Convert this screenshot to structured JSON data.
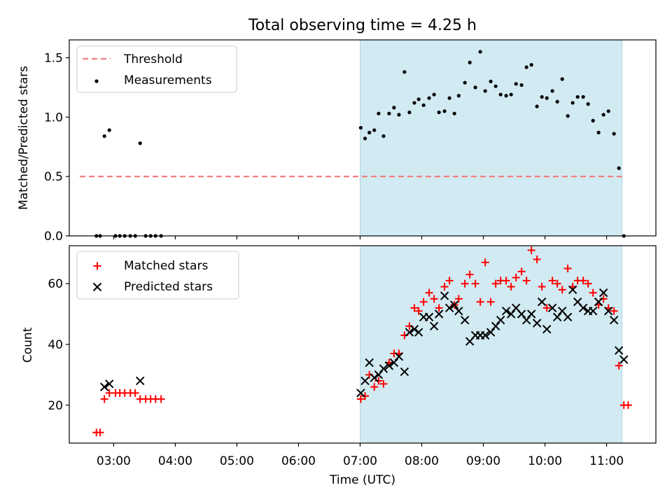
{
  "chart_data": {
    "title": "Total observing time = 4.25 h",
    "xlabel": "Time (UTC)",
    "x_ticks": [
      "03:00",
      "04:00",
      "05:00",
      "06:00",
      "07:00",
      "08:00",
      "09:00",
      "10:00",
      "11:00"
    ],
    "x_tick_hours": [
      3,
      4,
      5,
      6,
      7,
      8,
      9,
      10,
      11
    ],
    "xlim": [
      2.28,
      11.8
    ],
    "colors": {
      "threshold": "#f08080",
      "shade": "#add8e6",
      "matched": "#ff0000",
      "predicted": "#000000",
      "measurements": "#000000"
    },
    "panels": [
      {
        "type": "scatter",
        "ylabel": "Matched/Predicted stars",
        "ylim": [
          0,
          1.65
        ],
        "y_ticks": [
          0.0,
          0.5,
          1.0,
          1.5
        ],
        "y_tick_labels": [
          "0.0",
          "0.5",
          "1.0",
          "1.5"
        ],
        "legend_position": "top-left",
        "shaded_interval": [
          7.0,
          11.25
        ],
        "threshold": {
          "name": "Threshold",
          "y": 0.5,
          "x_range": [
            2.45,
            11.25
          ]
        },
        "series": [
          {
            "name": "Measurements",
            "points": [
              [
                2.72,
                0
              ],
              [
                2.78,
                0
              ],
              [
                2.85,
                0.84
              ],
              [
                2.93,
                0.89
              ],
              [
                3.03,
                0
              ],
              [
                3.1,
                0
              ],
              [
                3.18,
                0
              ],
              [
                3.27,
                0
              ],
              [
                3.35,
                0
              ],
              [
                3.43,
                0.78
              ],
              [
                3.52,
                0
              ],
              [
                3.6,
                0
              ],
              [
                3.68,
                0
              ],
              [
                3.77,
                0
              ],
              [
                7.01,
                0.91
              ],
              [
                7.08,
                0.82
              ],
              [
                7.15,
                0.87
              ],
              [
                7.23,
                0.89
              ],
              [
                7.3,
                1.03
              ],
              [
                7.38,
                0.84
              ],
              [
                7.47,
                1.03
              ],
              [
                7.55,
                1.08
              ],
              [
                7.63,
                1.02
              ],
              [
                7.72,
                1.38
              ],
              [
                7.8,
                1.04
              ],
              [
                7.88,
                1.12
              ],
              [
                7.95,
                1.15
              ],
              [
                8.03,
                1.1
              ],
              [
                8.12,
                1.16
              ],
              [
                8.2,
                1.19
              ],
              [
                8.28,
                1.04
              ],
              [
                8.37,
                1.05
              ],
              [
                8.45,
                1.16
              ],
              [
                8.53,
                1.03
              ],
              [
                8.6,
                1.18
              ],
              [
                8.7,
                1.29
              ],
              [
                8.78,
                1.46
              ],
              [
                8.87,
                1.25
              ],
              [
                8.95,
                1.55
              ],
              [
                9.03,
                1.22
              ],
              [
                9.12,
                1.3
              ],
              [
                9.2,
                1.26
              ],
              [
                9.28,
                1.19
              ],
              [
                9.37,
                1.18
              ],
              [
                9.45,
                1.19
              ],
              [
                9.53,
                1.28
              ],
              [
                9.62,
                1.27
              ],
              [
                9.7,
                1.42
              ],
              [
                9.78,
                1.44
              ],
              [
                9.87,
                1.09
              ],
              [
                9.95,
                1.17
              ],
              [
                10.03,
                1.16
              ],
              [
                10.12,
                1.22
              ],
              [
                10.2,
                1.13
              ],
              [
                10.28,
                1.32
              ],
              [
                10.37,
                1.01
              ],
              [
                10.45,
                1.12
              ],
              [
                10.53,
                1.17
              ],
              [
                10.62,
                1.17
              ],
              [
                10.7,
                1.11
              ],
              [
                10.78,
                0.97
              ],
              [
                10.87,
                0.87
              ],
              [
                10.95,
                1.02
              ],
              [
                11.03,
                1.05
              ],
              [
                11.12,
                0.86
              ],
              [
                11.2,
                0.57
              ],
              [
                11.28,
                0
              ]
            ]
          }
        ]
      },
      {
        "type": "scatter",
        "ylabel": "Count",
        "ylim": [
          7.5,
          72.5
        ],
        "y_ticks": [
          20,
          40,
          60
        ],
        "y_tick_labels": [
          "20",
          "40",
          "60"
        ],
        "legend_position": "top-left",
        "shaded_interval": [
          7.0,
          11.25
        ],
        "series": [
          {
            "name": "Matched stars",
            "marker": "plus",
            "points": [
              [
                2.72,
                11
              ],
              [
                2.78,
                11
              ],
              [
                2.85,
                22
              ],
              [
                2.93,
                24
              ],
              [
                3.03,
                24
              ],
              [
                3.1,
                24
              ],
              [
                3.18,
                24
              ],
              [
                3.27,
                24
              ],
              [
                3.35,
                24
              ],
              [
                3.43,
                22
              ],
              [
                3.52,
                22
              ],
              [
                3.6,
                22
              ],
              [
                3.68,
                22
              ],
              [
                3.77,
                22
              ],
              [
                7.01,
                22
              ],
              [
                7.08,
                23
              ],
              [
                7.15,
                30
              ],
              [
                7.23,
                26
              ],
              [
                7.3,
                28
              ],
              [
                7.38,
                27
              ],
              [
                7.47,
                34
              ],
              [
                7.55,
                37
              ],
              [
                7.63,
                37
              ],
              [
                7.72,
                43
              ],
              [
                7.8,
                46
              ],
              [
                7.88,
                52
              ],
              [
                7.95,
                51
              ],
              [
                8.03,
                54
              ],
              [
                8.12,
                57
              ],
              [
                8.2,
                55
              ],
              [
                8.28,
                52
              ],
              [
                8.37,
                59
              ],
              [
                8.45,
                61
              ],
              [
                8.53,
                53
              ],
              [
                8.6,
                55
              ],
              [
                8.7,
                60
              ],
              [
                8.78,
                63
              ],
              [
                8.87,
                60
              ],
              [
                8.95,
                54
              ],
              [
                9.03,
                67
              ],
              [
                9.12,
                54
              ],
              [
                9.2,
                60
              ],
              [
                9.28,
                61
              ],
              [
                9.37,
                61
              ],
              [
                9.45,
                59
              ],
              [
                9.53,
                62
              ],
              [
                9.62,
                64
              ],
              [
                9.7,
                61
              ],
              [
                9.78,
                71
              ],
              [
                9.87,
                68
              ],
              [
                9.95,
                59
              ],
              [
                10.03,
                52
              ],
              [
                10.12,
                61
              ],
              [
                10.2,
                60
              ],
              [
                10.28,
                58
              ],
              [
                10.37,
                65
              ],
              [
                10.45,
                59
              ],
              [
                10.53,
                61
              ],
              [
                10.62,
                61
              ],
              [
                10.7,
                60
              ],
              [
                10.78,
                57
              ],
              [
                10.87,
                53
              ],
              [
                10.95,
                55
              ],
              [
                11.03,
                52
              ],
              [
                11.12,
                51
              ],
              [
                11.2,
                33
              ],
              [
                11.28,
                20
              ],
              [
                11.35,
                20
              ]
            ]
          },
          {
            "name": "Predicted stars",
            "marker": "x",
            "points": [
              [
                2.85,
                26
              ],
              [
                2.93,
                27
              ],
              [
                3.43,
                28
              ],
              [
                7.01,
                24
              ],
              [
                7.08,
                28
              ],
              [
                7.15,
                34
              ],
              [
                7.23,
                29
              ],
              [
                7.3,
                30
              ],
              [
                7.38,
                32
              ],
              [
                7.47,
                33
              ],
              [
                7.55,
                34
              ],
              [
                7.63,
                36
              ],
              [
                7.72,
                31
              ],
              [
                7.8,
                44
              ],
              [
                7.88,
                45
              ],
              [
                7.95,
                44
              ],
              [
                8.03,
                49
              ],
              [
                8.12,
                49
              ],
              [
                8.2,
                46
              ],
              [
                8.28,
                50
              ],
              [
                8.37,
                56
              ],
              [
                8.45,
                52
              ],
              [
                8.53,
                53
              ],
              [
                8.6,
                51
              ],
              [
                8.7,
                48
              ],
              [
                8.78,
                41
              ],
              [
                8.87,
                43
              ],
              [
                8.95,
                43
              ],
              [
                9.03,
                43
              ],
              [
                9.12,
                44
              ],
              [
                9.2,
                46
              ],
              [
                9.28,
                48
              ],
              [
                9.37,
                51
              ],
              [
                9.45,
                50
              ],
              [
                9.53,
                52
              ],
              [
                9.62,
                50
              ],
              [
                9.7,
                48
              ],
              [
                9.78,
                50
              ],
              [
                9.87,
                47
              ],
              [
                9.95,
                54
              ],
              [
                10.03,
                45
              ],
              [
                10.12,
                52
              ],
              [
                10.2,
                49
              ],
              [
                10.28,
                51
              ],
              [
                10.37,
                49
              ],
              [
                10.45,
                58
              ],
              [
                10.53,
                54
              ],
              [
                10.62,
                52
              ],
              [
                10.7,
                51
              ],
              [
                10.78,
                51
              ],
              [
                10.87,
                54
              ],
              [
                10.95,
                57
              ],
              [
                11.03,
                51
              ],
              [
                11.12,
                48
              ],
              [
                11.2,
                38
              ],
              [
                11.28,
                35
              ]
            ]
          }
        ]
      }
    ]
  }
}
